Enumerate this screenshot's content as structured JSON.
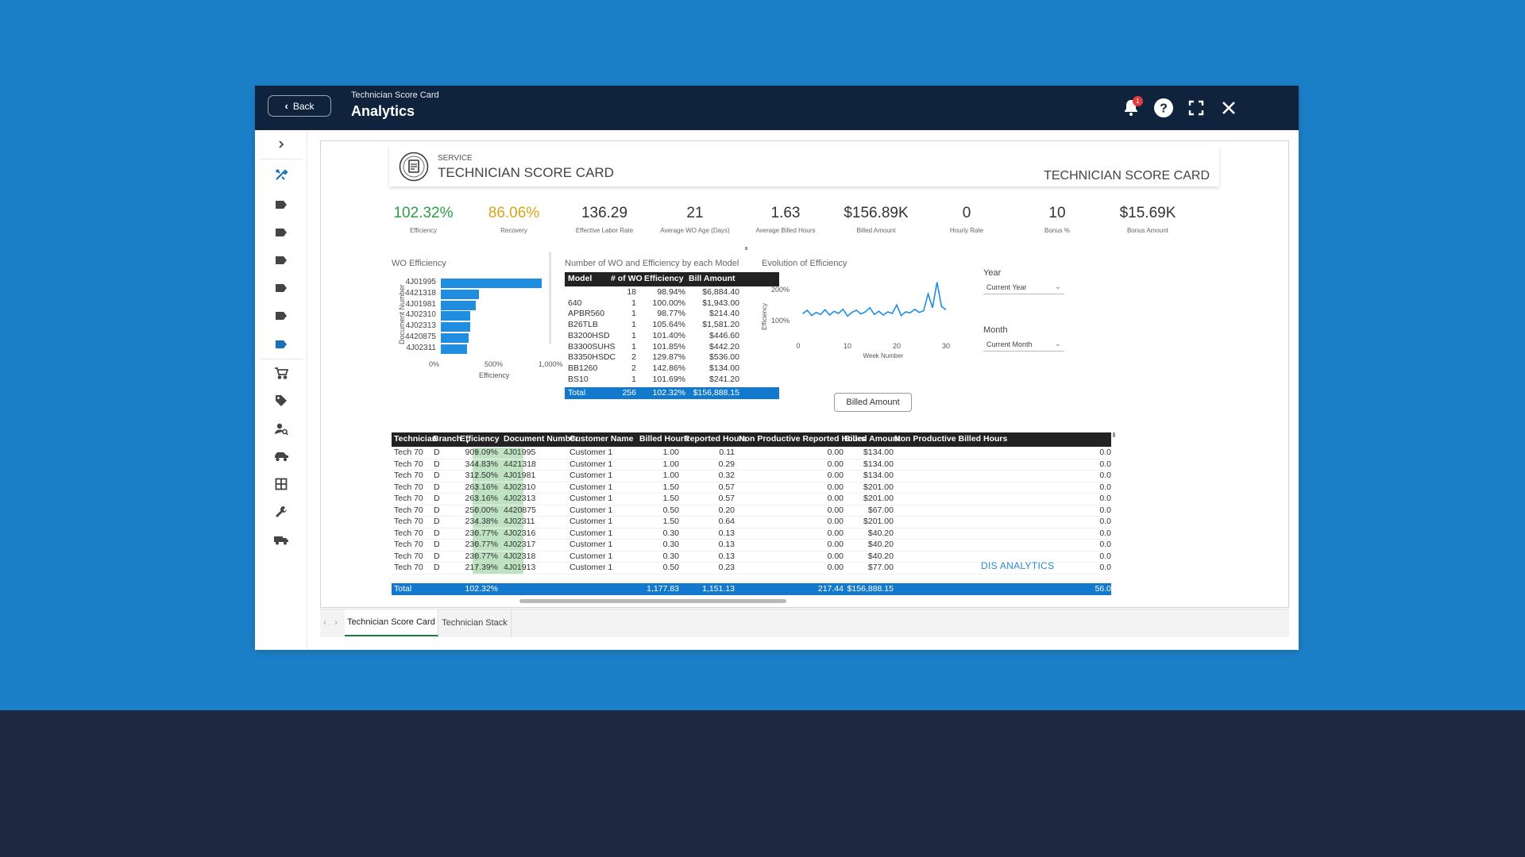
{
  "window": {
    "back_label": "Back",
    "breadcrumb": "Technician Score Card",
    "title": "Analytics",
    "notification_count": "1",
    "icons": [
      "bell-icon",
      "help-icon",
      "fullscreen-icon",
      "close-icon"
    ]
  },
  "sidebar": {
    "items": [
      "chevron-right-icon",
      "tools-icon",
      "tag-icon",
      "tag-icon",
      "tag-icon",
      "tag-icon",
      "tag-icon",
      "tag-icon",
      "cart-icon",
      "price-tag-icon",
      "user-search-icon",
      "vehicle-icon",
      "grid-icon",
      "wrench-icon",
      "truck-icon"
    ],
    "accent": "#1a6fb8"
  },
  "report": {
    "service_label": "SERVICE",
    "title": "TECHNICIAN SCORE CARD",
    "title_right": "TECHNICIAN SCORE CARD",
    "kpis": [
      {
        "value": "102.32%",
        "label": "Efficiency",
        "color": "#2e9b48"
      },
      {
        "value": "86.06%",
        "label": "Recovery",
        "color": "#d8a516"
      },
      {
        "value": "136.29",
        "label": "Effective Labor Rate",
        "color": "#333333"
      },
      {
        "value": "21",
        "label": "Average WO Age (Days)",
        "color": "#333333"
      },
      {
        "value": "1.63",
        "label": "Average Billed Hours",
        "color": "#333333"
      },
      {
        "value": "$156.89K",
        "label": "Billed Amount",
        "color": "#333333"
      },
      {
        "value": "0",
        "label": "Hourly Rate",
        "color": "#333333"
      },
      {
        "value": "10",
        "label": "Bonus %",
        "color": "#333333"
      },
      {
        "value": "$15.69K",
        "label": "Bonus Amount",
        "color": "#333333"
      }
    ],
    "wo_efficiency": {
      "title": "WO Efficiency",
      "ylabel": "Document Number",
      "xlabel": "Efficiency",
      "xticks": [
        "0%",
        "500%",
        "1,000%"
      ]
    },
    "model_table": {
      "title": "Number of WO and Efficiency by each Model",
      "columns": [
        "Model",
        "# of WO",
        "Efficiency",
        "Bill Amount"
      ],
      "rows": [
        [
          "",
          "18",
          "98.94%",
          "$6,884.40"
        ],
        [
          "640",
          "1",
          "100.00%",
          "$1,943.00"
        ],
        [
          "APBR560",
          "1",
          "98.77%",
          "$214.40"
        ],
        [
          "B26TLB",
          "1",
          "105.64%",
          "$1,581.20"
        ],
        [
          "B3200HSD",
          "1",
          "101.40%",
          "$446.60"
        ],
        [
          "B3300SUHS",
          "1",
          "101.85%",
          "$442.20"
        ],
        [
          "B3350HSDC",
          "2",
          "129.87%",
          "$536.00"
        ],
        [
          "BB1260",
          "2",
          "142.86%",
          "$134.00"
        ],
        [
          "BS10",
          "1",
          "101.69%",
          "$241.20"
        ]
      ],
      "total": [
        "Total",
        "256",
        "102.32%",
        "$156,888.15"
      ]
    },
    "evolution": {
      "title": "Evolution of Efficiency",
      "ylabel": "Efficiency",
      "xlabel": "Week Number",
      "yticks": [
        "200%",
        "100%"
      ],
      "xticks": [
        "0",
        "10",
        "20",
        "30"
      ]
    },
    "slicers": {
      "year_label": "Year",
      "year_value": "Current Year",
      "month_label": "Month",
      "month_value": "Current Month"
    },
    "billed_button": "Billed Amount",
    "detail_table": {
      "columns": [
        "Technician",
        "Branch",
        "Efficiency",
        "Document Number",
        "Customer Name",
        "Billed Hours",
        "Reported Hours",
        "Non Productive Reported Hours",
        "Billed Amount",
        "Non Productive Billed Hours"
      ],
      "rows": [
        [
          "Tech 70",
          "D",
          "909.09%",
          "4J01995",
          "Customer 1",
          "1.00",
          "0.11",
          "0.00",
          "$134.00",
          "0.0"
        ],
        [
          "Tech 70",
          "D",
          "344.83%",
          "4421318",
          "Customer 1",
          "1.00",
          "0.29",
          "0.00",
          "$134.00",
          "0.0"
        ],
        [
          "Tech 70",
          "D",
          "312.50%",
          "4J01981",
          "Customer 1",
          "1.00",
          "0.32",
          "0.00",
          "$134.00",
          "0.0"
        ],
        [
          "Tech 70",
          "D",
          "263.16%",
          "4J02310",
          "Customer 1",
          "1.50",
          "0.57",
          "0.00",
          "$201.00",
          "0.0"
        ],
        [
          "Tech 70",
          "D",
          "263.16%",
          "4J02313",
          "Customer 1",
          "1.50",
          "0.57",
          "0.00",
          "$201.00",
          "0.0"
        ],
        [
          "Tech 70",
          "D",
          "250.00%",
          "4420875",
          "Customer 1",
          "0.50",
          "0.20",
          "0.00",
          "$67.00",
          "0.0"
        ],
        [
          "Tech 70",
          "D",
          "234.38%",
          "4J02311",
          "Customer 1",
          "1.50",
          "0.64",
          "0.00",
          "$201.00",
          "0.0"
        ],
        [
          "Tech 70",
          "D",
          "230.77%",
          "4J02316",
          "Customer 1",
          "0.30",
          "0.13",
          "0.00",
          "$40.20",
          "0.0"
        ],
        [
          "Tech 70",
          "D",
          "230.77%",
          "4J02317",
          "Customer 1",
          "0.30",
          "0.13",
          "0.00",
          "$40.20",
          "0.0"
        ],
        [
          "Tech 70",
          "D",
          "230.77%",
          "4J02318",
          "Customer 1",
          "0.30",
          "0.13",
          "0.00",
          "$40.20",
          "0.0"
        ],
        [
          "Tech 70",
          "D",
          "217.39%",
          "4J01913",
          "Customer 1",
          "0.50",
          "0.23",
          "0.00",
          "$77.00",
          "0.0"
        ]
      ],
      "total": [
        "Total",
        "",
        "102.32%",
        "",
        "",
        "1,177.83",
        "1,151.13",
        "217.44",
        "$156,888.15",
        "56.0"
      ]
    },
    "brand": "DIS ANALYTICS"
  },
  "tabs": [
    "Technician Score Card",
    "Technician Stack"
  ],
  "chart_data": [
    {
      "type": "bar",
      "title": "WO Efficiency",
      "xlabel": "Efficiency",
      "ylabel": "Document Number",
      "categories": [
        "4J01995",
        "4421318",
        "4J01981",
        "4J02310",
        "4J02313",
        "4420875",
        "4J02311"
      ],
      "values": [
        909.09,
        344.83,
        312.5,
        263.16,
        263.16,
        250.0,
        234.38
      ],
      "xlim": [
        0,
        1000
      ]
    },
    {
      "type": "line",
      "title": "Evolution of Efficiency",
      "xlabel": "Week Number",
      "ylabel": "Efficiency",
      "x": [
        1,
        2,
        3,
        4,
        5,
        6,
        7,
        8,
        9,
        10,
        11,
        12,
        13,
        14,
        15,
        16,
        17,
        18,
        19,
        20,
        21,
        22,
        23,
        24,
        25,
        26,
        27,
        28,
        29,
        30,
        31,
        32,
        33
      ],
      "values": [
        95,
        108,
        88,
        100,
        92,
        110,
        90,
        104,
        96,
        112,
        86,
        100,
        108,
        94,
        102,
        118,
        92,
        104,
        90,
        102,
        96,
        128,
        88,
        102,
        98,
        112,
        100,
        106,
        170,
        118,
        214,
        122,
        110
      ],
      "ylim": [
        0,
        240
      ],
      "xlim": [
        0,
        33
      ]
    }
  ]
}
